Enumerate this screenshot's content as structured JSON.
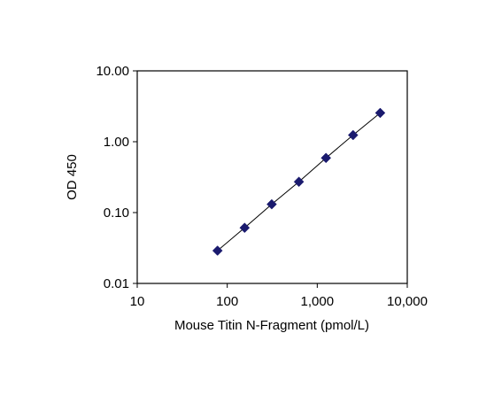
{
  "chart_data": {
    "type": "scatter",
    "title": "",
    "xlabel": "Mouse Titin N-Fragment (pmol/L)",
    "ylabel": "OD 450",
    "x_scale": "log",
    "y_scale": "log",
    "xlim": [
      10,
      10000
    ],
    "ylim": [
      0.01,
      10
    ],
    "x_ticks": [
      10,
      100,
      1000,
      10000
    ],
    "x_tick_labels": [
      "10",
      "100",
      "1,000",
      "10,000"
    ],
    "y_ticks": [
      0.01,
      0.1,
      1,
      10
    ],
    "y_tick_labels": [
      "0.01",
      "0.10",
      "1.00",
      "10.00"
    ],
    "grid": false,
    "legend": "none",
    "marker": "diamond",
    "marker_color": "#1a1a6e",
    "line_color": "#000000",
    "series": [
      {
        "x": [
          78,
          156,
          312,
          625,
          1250,
          2500,
          5000
        ],
        "y": [
          0.029,
          0.061,
          0.131,
          0.272,
          0.59,
          1.24,
          2.55
        ]
      }
    ]
  }
}
